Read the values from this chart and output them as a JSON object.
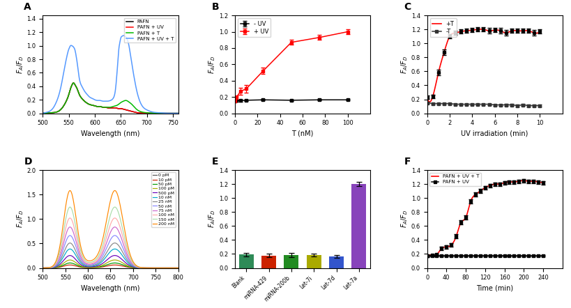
{
  "figsize": [
    8.19,
    4.42
  ],
  "dpi": 100,
  "background": "#ffffff",
  "panel_A": {
    "label": "A",
    "xlim": [
      500,
      760
    ],
    "ylim": [
      0,
      1.45
    ],
    "xlabel": "Wavelength (nm)",
    "ylabel": "F_A/F_D",
    "yticks": [
      0.0,
      0.2,
      0.4,
      0.6,
      0.8,
      1.0,
      1.2,
      1.4
    ],
    "xticks": [
      500,
      550,
      600,
      650,
      700,
      750
    ],
    "legend": [
      "PAFN",
      "PAFN + UV",
      "PAFN + T",
      "PAFN + UV + T"
    ],
    "colors": [
      "#000000",
      "#ff0000",
      "#00bb00",
      "#5599ff"
    ],
    "curves": {
      "PAFN": {
        "x": [
          500,
          510,
          520,
          530,
          535,
          540,
          545,
          550,
          553,
          556,
          559,
          562,
          565,
          568,
          570,
          575,
          580,
          585,
          590,
          595,
          600,
          605,
          610,
          615,
          620,
          625,
          630,
          635,
          640,
          645,
          650,
          655,
          660,
          665,
          670,
          675,
          680,
          690,
          700,
          710,
          720,
          730,
          740,
          750,
          760
        ],
        "y": [
          0.0,
          0.005,
          0.01,
          0.03,
          0.06,
          0.11,
          0.18,
          0.28,
          0.36,
          0.42,
          0.45,
          0.42,
          0.38,
          0.32,
          0.28,
          0.22,
          0.18,
          0.15,
          0.13,
          0.12,
          0.11,
          0.1,
          0.1,
          0.09,
          0.09,
          0.08,
          0.08,
          0.08,
          0.08,
          0.07,
          0.07,
          0.06,
          0.05,
          0.04,
          0.03,
          0.02,
          0.01,
          0.005,
          0.002,
          0.001,
          0.0,
          0.0,
          0.0,
          0.0,
          0.0
        ]
      },
      "PAFN+UV": {
        "x": [
          500,
          510,
          520,
          530,
          535,
          540,
          545,
          550,
          553,
          556,
          559,
          562,
          565,
          568,
          570,
          575,
          580,
          585,
          590,
          595,
          600,
          605,
          610,
          615,
          620,
          625,
          630,
          635,
          640,
          645,
          650,
          655,
          660,
          665,
          670,
          675,
          680,
          690,
          700,
          710,
          720,
          730,
          740,
          750,
          760
        ],
        "y": [
          0.0,
          0.005,
          0.01,
          0.03,
          0.06,
          0.11,
          0.18,
          0.28,
          0.36,
          0.42,
          0.45,
          0.42,
          0.38,
          0.32,
          0.28,
          0.22,
          0.18,
          0.15,
          0.13,
          0.12,
          0.11,
          0.1,
          0.1,
          0.09,
          0.09,
          0.08,
          0.08,
          0.08,
          0.08,
          0.07,
          0.07,
          0.06,
          0.05,
          0.04,
          0.03,
          0.02,
          0.01,
          0.005,
          0.002,
          0.001,
          0.0,
          0.0,
          0.0,
          0.0,
          0.0
        ]
      },
      "PAFN+T": {
        "x": [
          500,
          510,
          520,
          530,
          535,
          540,
          545,
          550,
          553,
          556,
          559,
          562,
          565,
          568,
          570,
          575,
          580,
          585,
          590,
          595,
          600,
          605,
          610,
          615,
          620,
          625,
          630,
          635,
          640,
          645,
          650,
          655,
          660,
          665,
          670,
          675,
          680,
          690,
          700,
          710,
          720,
          730,
          740,
          750,
          760
        ],
        "y": [
          0.0,
          0.005,
          0.01,
          0.03,
          0.06,
          0.11,
          0.18,
          0.28,
          0.36,
          0.42,
          0.45,
          0.42,
          0.38,
          0.32,
          0.28,
          0.22,
          0.18,
          0.15,
          0.13,
          0.12,
          0.11,
          0.1,
          0.1,
          0.09,
          0.09,
          0.09,
          0.09,
          0.1,
          0.11,
          0.13,
          0.16,
          0.18,
          0.19,
          0.17,
          0.14,
          0.1,
          0.06,
          0.02,
          0.008,
          0.003,
          0.001,
          0.0,
          0.0,
          0.0,
          0.0
        ]
      },
      "PAFN+UV+T": {
        "x": [
          500,
          505,
          510,
          515,
          520,
          525,
          530,
          535,
          540,
          545,
          547,
          549,
          551,
          553,
          556,
          558,
          560,
          562,
          564,
          566,
          568,
          570,
          575,
          580,
          585,
          590,
          595,
          600,
          605,
          610,
          615,
          620,
          625,
          630,
          635,
          638,
          640,
          642,
          644,
          646,
          648,
          650,
          652,
          654,
          656,
          658,
          660,
          662,
          665,
          670,
          675,
          680,
          690,
          700,
          710,
          720,
          730,
          740,
          750,
          760
        ],
        "y": [
          0.0,
          0.01,
          0.02,
          0.04,
          0.08,
          0.15,
          0.25,
          0.4,
          0.6,
          0.8,
          0.87,
          0.93,
          0.97,
          1.0,
          1.0,
          0.99,
          0.97,
          0.93,
          0.85,
          0.75,
          0.63,
          0.52,
          0.4,
          0.33,
          0.28,
          0.24,
          0.22,
          0.2,
          0.19,
          0.19,
          0.18,
          0.18,
          0.18,
          0.19,
          0.22,
          0.28,
          0.38,
          0.55,
          0.75,
          0.95,
          1.05,
          1.12,
          1.14,
          1.15,
          1.15,
          1.14,
          1.13,
          1.1,
          1.02,
          0.78,
          0.55,
          0.35,
          0.12,
          0.05,
          0.02,
          0.01,
          0.005,
          0.001,
          0.0,
          0.0
        ]
      }
    }
  },
  "panel_B": {
    "label": "B",
    "xlim": [
      0,
      120
    ],
    "ylim": [
      0.0,
      1.2
    ],
    "xlabel": "T (nM)",
    "ylabel": "F_A/F_D",
    "xticks": [
      0,
      20,
      40,
      60,
      80,
      100
    ],
    "yticks": [
      0.0,
      0.2,
      0.4,
      0.6,
      0.8,
      1.0,
      1.2
    ],
    "legend": [
      "- UV",
      "+ UV"
    ],
    "colors": [
      "#000000",
      "#ff0000"
    ],
    "minus_UV_x": [
      0,
      1,
      5,
      10,
      25,
      50,
      75,
      100
    ],
    "minus_UV_y": [
      0.15,
      0.155,
      0.155,
      0.16,
      0.165,
      0.16,
      0.165,
      0.165
    ],
    "minus_UV_err": [
      0.01,
      0.01,
      0.01,
      0.01,
      0.01,
      0.01,
      0.01,
      0.01
    ],
    "plus_UV_x": [
      0,
      1,
      5,
      10,
      25,
      50,
      75,
      100
    ],
    "plus_UV_y": [
      0.15,
      0.19,
      0.27,
      0.3,
      0.52,
      0.87,
      0.93,
      1.0
    ],
    "plus_UV_err": [
      0.01,
      0.025,
      0.04,
      0.045,
      0.04,
      0.03,
      0.03,
      0.03
    ]
  },
  "panel_C": {
    "label": "C",
    "xlim": [
      0,
      12
    ],
    "ylim": [
      0.0,
      1.4
    ],
    "xlabel": "UV irradiation (min)",
    "ylabel": "F_A/F_D",
    "xticks": [
      0,
      2,
      4,
      6,
      8,
      10
    ],
    "yticks": [
      0.0,
      0.2,
      0.4,
      0.6,
      0.8,
      1.0,
      1.2,
      1.4
    ],
    "legend": [
      "+T",
      "-T"
    ],
    "colors": [
      "#ff0000",
      "#333333"
    ],
    "plus_T_x": [
      0,
      0.5,
      1,
      1.5,
      2,
      2.5,
      3,
      3.5,
      4,
      4.5,
      5,
      5.5,
      6,
      6.5,
      7,
      7.5,
      8,
      8.5,
      9,
      9.5,
      10
    ],
    "plus_T_y": [
      0.23,
      0.24,
      0.58,
      0.87,
      1.1,
      1.15,
      1.17,
      1.18,
      1.19,
      1.2,
      1.2,
      1.18,
      1.19,
      1.18,
      1.15,
      1.18,
      1.18,
      1.18,
      1.18,
      1.15,
      1.17
    ],
    "plus_T_err": [
      0.02,
      0.02,
      0.04,
      0.04,
      0.03,
      0.03,
      0.03,
      0.03,
      0.03,
      0.03,
      0.03,
      0.04,
      0.03,
      0.04,
      0.04,
      0.03,
      0.03,
      0.03,
      0.03,
      0.04,
      0.03
    ],
    "minus_T_x": [
      0,
      0.5,
      1,
      1.5,
      2,
      2.5,
      3,
      3.5,
      4,
      4.5,
      5,
      5.5,
      6,
      6.5,
      7,
      7.5,
      8,
      8.5,
      9,
      9.5,
      10
    ],
    "minus_T_y": [
      0.15,
      0.14,
      0.14,
      0.14,
      0.14,
      0.13,
      0.13,
      0.13,
      0.13,
      0.13,
      0.13,
      0.13,
      0.12,
      0.12,
      0.12,
      0.12,
      0.11,
      0.12,
      0.11,
      0.11,
      0.11
    ],
    "minus_T_err": [
      0.015,
      0.01,
      0.01,
      0.01,
      0.01,
      0.01,
      0.01,
      0.01,
      0.01,
      0.01,
      0.01,
      0.01,
      0.01,
      0.01,
      0.015,
      0.015,
      0.015,
      0.015,
      0.015,
      0.015,
      0.015
    ]
  },
  "panel_D": {
    "label": "D",
    "xlim": [
      500,
      800
    ],
    "ylim": [
      0.0,
      2.0
    ],
    "xlabel": "Wavelength (nm)",
    "ylabel": "F_A/F_D",
    "xticks": [
      500,
      550,
      600,
      650,
      700,
      750,
      800
    ],
    "yticks": [
      0.0,
      0.5,
      1.0,
      1.5,
      2.0
    ],
    "legend_labels": [
      "0 pM",
      "10 pM",
      "50 pM",
      "100 pM",
      "500 pM",
      "10 nM",
      "25 nM",
      "50 nM",
      "75 nM",
      "100 nM",
      "150 nM",
      "200 nM"
    ],
    "legend_colors": [
      "#555555",
      "#cc2200",
      "#009900",
      "#aaaa00",
      "#6600bb",
      "#00aacc",
      "#888888",
      "#8888ff",
      "#cc66cc",
      "#ffaaaa",
      "#aaddaa",
      "#ff8800"
    ],
    "scale_factors": [
      0.0,
      0.06,
      0.1,
      0.16,
      0.25,
      0.38,
      0.5,
      0.65,
      0.82,
      1.0,
      1.22,
      1.55
    ]
  },
  "panel_E": {
    "label": "E",
    "xlim": [
      -0.5,
      5.5
    ],
    "ylim": [
      0.0,
      1.4
    ],
    "xlabel": "",
    "ylabel": "F_A/F_D",
    "yticks": [
      0.0,
      0.2,
      0.4,
      0.6,
      0.8,
      1.0,
      1.2,
      1.4
    ],
    "categories": [
      "Blank",
      "miRNA-429",
      "miRNA-200b",
      "Let-7i",
      "Let-7d",
      "Let-7a"
    ],
    "values": [
      0.19,
      0.175,
      0.185,
      0.185,
      0.165,
      1.2
    ],
    "errors": [
      0.025,
      0.025,
      0.03,
      0.02,
      0.02,
      0.03
    ],
    "bar_colors": [
      "#2e8b57",
      "#cc2200",
      "#228B22",
      "#aaaa00",
      "#3355cc",
      "#8844bb"
    ]
  },
  "panel_F": {
    "label": "F",
    "xlim": [
      0,
      280
    ],
    "ylim": [
      0.0,
      1.4
    ],
    "xlabel": "Time (min)",
    "ylabel": "F_A/F_D",
    "xticks": [
      0,
      40,
      80,
      120,
      160,
      200,
      240
    ],
    "yticks": [
      0.0,
      0.2,
      0.4,
      0.6,
      0.8,
      1.0,
      1.2,
      1.4
    ],
    "legend": [
      "PAFN + UV + T",
      "PAFN + UV"
    ],
    "colors": [
      "#ff0000",
      "#000000"
    ],
    "pafn_uv_t_x": [
      0,
      10,
      20,
      30,
      40,
      50,
      60,
      70,
      80,
      90,
      100,
      110,
      120,
      130,
      140,
      150,
      160,
      170,
      180,
      190,
      200,
      210,
      220,
      230,
      240
    ],
    "pafn_uv_t_y": [
      0.17,
      0.18,
      0.19,
      0.28,
      0.3,
      0.33,
      0.45,
      0.65,
      0.72,
      0.95,
      1.05,
      1.1,
      1.15,
      1.18,
      1.2,
      1.2,
      1.22,
      1.23,
      1.23,
      1.24,
      1.25,
      1.24,
      1.24,
      1.23,
      1.22
    ],
    "pafn_uv_t_err": [
      0.015,
      0.015,
      0.015,
      0.025,
      0.025,
      0.025,
      0.03,
      0.03,
      0.03,
      0.03,
      0.03,
      0.03,
      0.025,
      0.025,
      0.025,
      0.025,
      0.025,
      0.025,
      0.025,
      0.025,
      0.025,
      0.025,
      0.025,
      0.025,
      0.025
    ],
    "pafn_uv_x": [
      0,
      10,
      20,
      30,
      40,
      50,
      60,
      70,
      80,
      90,
      100,
      110,
      120,
      130,
      140,
      150,
      160,
      170,
      180,
      190,
      200,
      210,
      220,
      230,
      240
    ],
    "pafn_uv_y": [
      0.17,
      0.175,
      0.175,
      0.175,
      0.175,
      0.175,
      0.175,
      0.175,
      0.175,
      0.175,
      0.175,
      0.175,
      0.175,
      0.175,
      0.175,
      0.175,
      0.175,
      0.175,
      0.175,
      0.175,
      0.175,
      0.175,
      0.175,
      0.175,
      0.175
    ],
    "pafn_uv_err": [
      0.01,
      0.01,
      0.01,
      0.01,
      0.01,
      0.01,
      0.01,
      0.01,
      0.01,
      0.01,
      0.01,
      0.01,
      0.01,
      0.01,
      0.01,
      0.01,
      0.01,
      0.01,
      0.01,
      0.01,
      0.01,
      0.01,
      0.01,
      0.01,
      0.01
    ]
  }
}
